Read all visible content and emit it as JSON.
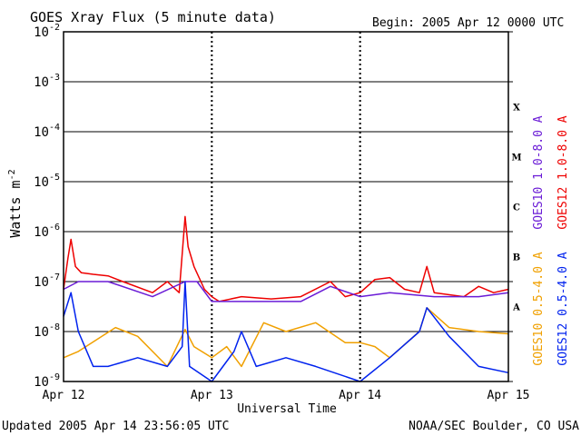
{
  "chart_data": {
    "type": "line",
    "title": "GOES Xray Flux (5 minute data)",
    "begin_label": "Begin:  2005 Apr 12 0000 UTC",
    "ylabel_base": "Watts m",
    "ylabel_exp": "-2",
    "xlabel": "Universal Time",
    "y_scale": "log",
    "ylim": [
      1e-09,
      0.01
    ],
    "y_ticks": [
      {
        "base": "10",
        "exp": "-9"
      },
      {
        "base": "10",
        "exp": "-8"
      },
      {
        "base": "10",
        "exp": "-7"
      },
      {
        "base": "10",
        "exp": "-6"
      },
      {
        "base": "10",
        "exp": "-5"
      },
      {
        "base": "10",
        "exp": "-4"
      },
      {
        "base": "10",
        "exp": "-3"
      },
      {
        "base": "10",
        "exp": "-2"
      }
    ],
    "x_range_days": [
      0,
      3
    ],
    "x_ticks": [
      "Apr 12",
      "Apr 13",
      "Apr 14",
      "Apr 15"
    ],
    "flare_classes": [
      "A",
      "B",
      "C",
      "M",
      "X"
    ],
    "grid": true,
    "series": [
      {
        "name": "GOES12 1.0-8.0 A",
        "color": "#ee0000",
        "points": [
          [
            0,
            7e-08
          ],
          [
            0.03,
            3e-07
          ],
          [
            0.05,
            7e-07
          ],
          [
            0.08,
            2e-07
          ],
          [
            0.12,
            1.5e-07
          ],
          [
            0.2,
            1.4e-07
          ],
          [
            0.3,
            1.3e-07
          ],
          [
            0.4,
            1e-07
          ],
          [
            0.6,
            6e-08
          ],
          [
            0.7,
            1e-07
          ],
          [
            0.78,
            6e-08
          ],
          [
            0.82,
            2e-06
          ],
          [
            0.84,
            5e-07
          ],
          [
            0.88,
            2e-07
          ],
          [
            0.95,
            7e-08
          ],
          [
            1.0,
            5e-08
          ],
          [
            1.05,
            4e-08
          ],
          [
            1.2,
            5e-08
          ],
          [
            1.4,
            4.5e-08
          ],
          [
            1.6,
            5e-08
          ],
          [
            1.8,
            1e-07
          ],
          [
            1.9,
            5e-08
          ],
          [
            2.0,
            6e-08
          ],
          [
            2.1,
            1.1e-07
          ],
          [
            2.2,
            1.2e-07
          ],
          [
            2.3,
            7e-08
          ],
          [
            2.4,
            6e-08
          ],
          [
            2.45,
            2e-07
          ],
          [
            2.5,
            6e-08
          ],
          [
            2.7,
            5e-08
          ],
          [
            2.8,
            8e-08
          ],
          [
            2.9,
            6e-08
          ],
          [
            3.0,
            7e-08
          ]
        ]
      },
      {
        "name": "GOES10 1.0-8.0 A",
        "color": "#6a1bd6",
        "points": [
          [
            0,
            7e-08
          ],
          [
            0.1,
            1e-07
          ],
          [
            0.3,
            1e-07
          ],
          [
            0.6,
            5e-08
          ],
          [
            0.82,
            1e-07
          ],
          [
            0.9,
            1e-07
          ],
          [
            1.0,
            4e-08
          ],
          [
            1.6,
            4e-08
          ],
          [
            1.8,
            8e-08
          ],
          [
            2.0,
            5e-08
          ],
          [
            2.2,
            6e-08
          ],
          [
            2.5,
            5e-08
          ],
          [
            2.8,
            5e-08
          ],
          [
            3.0,
            6e-08
          ]
        ]
      },
      {
        "name": "GOES10 0.5-4.0 A",
        "color": "#f0a000",
        "points": [
          [
            0,
            3e-09
          ],
          [
            0.1,
            4e-09
          ],
          [
            0.35,
            1.2e-08
          ],
          [
            0.5,
            8e-09
          ],
          [
            0.7,
            2e-09
          ],
          [
            0.82,
            1.1e-08
          ],
          [
            0.88,
            5e-09
          ],
          [
            1.0,
            3e-09
          ],
          [
            1.1,
            5e-09
          ],
          [
            1.2,
            2e-09
          ],
          [
            1.35,
            1.5e-08
          ],
          [
            1.5,
            1e-08
          ],
          [
            1.7,
            1.5e-08
          ],
          [
            1.9,
            6e-09
          ],
          [
            2.0,
            6e-09
          ],
          [
            2.1,
            5e-09
          ],
          [
            2.2,
            3e-09
          ],
          [
            2.4,
            1e-08
          ],
          [
            2.45,
            3e-08
          ],
          [
            2.6,
            1.2e-08
          ],
          [
            2.8,
            1e-08
          ],
          [
            3.0,
            9e-09
          ]
        ]
      },
      {
        "name": "GOES12 0.5-4.0 A",
        "color": "#0022ee",
        "points": [
          [
            0,
            2e-08
          ],
          [
            0.05,
            6e-08
          ],
          [
            0.1,
            1e-08
          ],
          [
            0.2,
            2e-09
          ],
          [
            0.3,
            2e-09
          ],
          [
            0.5,
            3e-09
          ],
          [
            0.7,
            2e-09
          ],
          [
            0.8,
            5e-09
          ],
          [
            0.82,
            1e-07
          ],
          [
            0.85,
            2e-09
          ],
          [
            1.0,
            1e-09
          ],
          [
            1.15,
            4e-09
          ],
          [
            1.2,
            1e-08
          ],
          [
            1.3,
            2e-09
          ],
          [
            1.5,
            3e-09
          ],
          [
            1.7,
            2e-09
          ],
          [
            2.0,
            1e-09
          ],
          [
            2.2,
            3e-09
          ],
          [
            2.4,
            1e-08
          ],
          [
            2.45,
            3e-08
          ],
          [
            2.6,
            8e-09
          ],
          [
            2.8,
            2e-09
          ],
          [
            3.0,
            1.5e-09
          ]
        ]
      }
    ]
  },
  "footer": {
    "updated": "Updated 2005 Apr 14 23:56:05 UTC",
    "source": "NOAA/SEC Boulder, CO USA"
  }
}
